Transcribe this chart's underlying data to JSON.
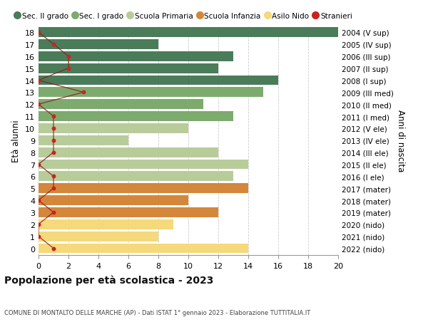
{
  "ages": [
    18,
    17,
    16,
    15,
    14,
    13,
    12,
    11,
    10,
    9,
    8,
    7,
    6,
    5,
    4,
    3,
    2,
    1,
    0
  ],
  "years": [
    "2004 (V sup)",
    "2005 (IV sup)",
    "2006 (III sup)",
    "2007 (II sup)",
    "2008 (I sup)",
    "2009 (III med)",
    "2010 (II med)",
    "2011 (I med)",
    "2012 (V ele)",
    "2013 (IV ele)",
    "2014 (III ele)",
    "2015 (II ele)",
    "2016 (I ele)",
    "2017 (mater)",
    "2018 (mater)",
    "2019 (mater)",
    "2020 (nido)",
    "2021 (nido)",
    "2022 (nido)"
  ],
  "bar_values": [
    20,
    8,
    13,
    12,
    16,
    15,
    11,
    13,
    10,
    6,
    12,
    14,
    13,
    14,
    10,
    12,
    9,
    8,
    14
  ],
  "bar_colors": [
    "#4a7c59",
    "#4a7c59",
    "#4a7c59",
    "#4a7c59",
    "#4a7c59",
    "#7dab6e",
    "#7dab6e",
    "#7dab6e",
    "#b8cc9a",
    "#b8cc9a",
    "#b8cc9a",
    "#b8cc9a",
    "#b8cc9a",
    "#d4873a",
    "#d4873a",
    "#d4873a",
    "#f5d97a",
    "#f5d97a",
    "#f5d97a"
  ],
  "stranieri": [
    0,
    1,
    2,
    2,
    0,
    3,
    0,
    1,
    1,
    1,
    1,
    0,
    1,
    1,
    0,
    1,
    0,
    0,
    1
  ],
  "xlim": [
    0,
    20
  ],
  "xticks": [
    0,
    2,
    4,
    6,
    8,
    10,
    12,
    14,
    16,
    18,
    20
  ],
  "title": "Popolazione per età scolastica - 2023",
  "subtitle": "COMUNE DI MONTALTO DELLE MARCHE (AP) - Dati ISTAT 1° gennaio 2023 - Elaborazione TUTTITALIA.IT",
  "ylabel_left": "Età alunni",
  "ylabel_right": "Anni di nascita",
  "legend_labels": [
    "Sec. II grado",
    "Sec. I grado",
    "Scuola Primaria",
    "Scuola Infanzia",
    "Asilo Nido",
    "Stranieri"
  ],
  "legend_colors": [
    "#4a7c59",
    "#7dab6e",
    "#b8cc9a",
    "#d4873a",
    "#f5d97a",
    "#cc0000"
  ],
  "bg_color": "#ffffff",
  "bar_height": 0.82
}
